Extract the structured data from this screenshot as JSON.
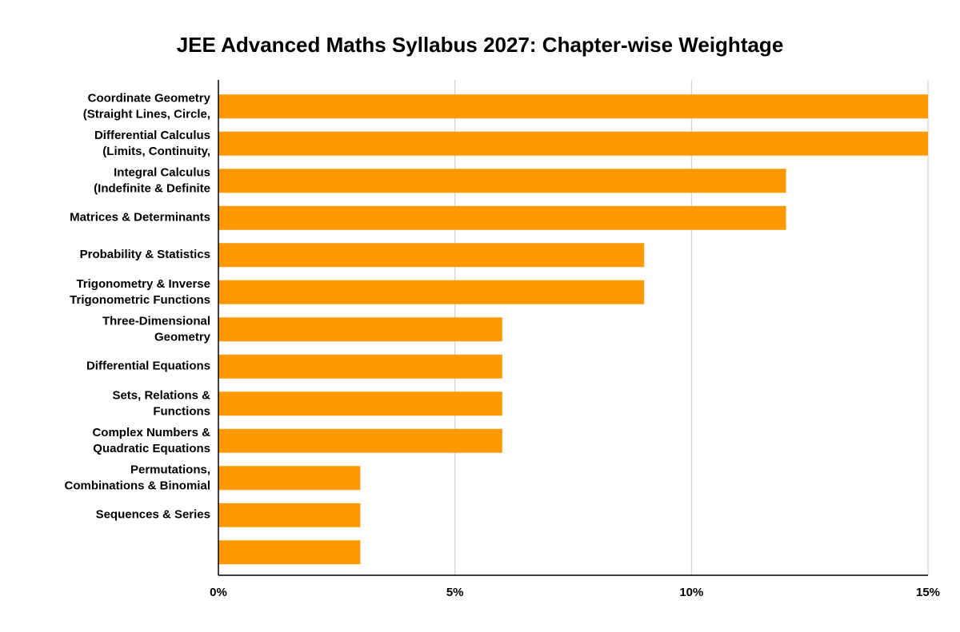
{
  "chart_data": {
    "type": "bar",
    "orientation": "horizontal",
    "title": "JEE Advanced Maths Syllabus 2027: Chapter-wise Weightage",
    "categories": [
      "Coordinate Geometry\n(Straight Lines, Circle,",
      "Differential Calculus\n(Limits, Continuity,",
      "Integral Calculus\n(Indefinite & Definite",
      "Matrices & Determinants",
      "Probability & Statistics",
      "Trigonometry & Inverse\nTrigonometric Functions",
      "Three-Dimensional\nGeometry",
      "Differential Equations",
      "Sets, Relations &\nFunctions",
      "Complex Numbers &\nQuadratic Equations",
      "Permutations,\nCombinations & Binomial",
      "Sequences & Series",
      null
    ],
    "values": [
      15,
      15,
      12,
      12,
      9,
      9,
      6,
      6,
      6,
      6,
      3,
      3,
      3
    ],
    "color": "#ff9900",
    "xlim": [
      0,
      15
    ],
    "xticks": [
      {
        "value": 0,
        "label": "0%"
      },
      {
        "value": 5,
        "label": "5%"
      },
      {
        "value": 10,
        "label": "10%"
      },
      {
        "value": 15,
        "label": "15%"
      }
    ],
    "grid": true
  }
}
